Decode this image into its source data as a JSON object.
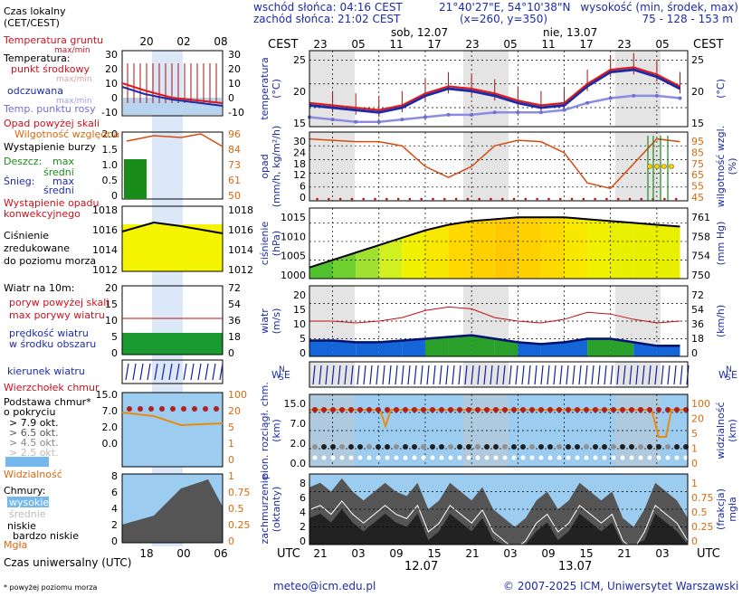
{
  "header": {
    "sunrise": "wschód słońca: 04:16 CEST",
    "sunset": "zachód słońca: 21:02 CEST",
    "coords": "21°40'27\"E, 54°10'38\"N",
    "grid": "(x=260,  y=350)",
    "height_label": "wysokość (min, środek, max)",
    "height_values": "75 - 128 - 153 m"
  },
  "top_axis": {
    "cest_left": "CEST",
    "cest_right": "CEST",
    "day1": "sob, 12.07",
    "day2": "nie, 13.07",
    "hours": [
      "23",
      "05",
      "11",
      "17",
      "23",
      "05",
      "11",
      "17",
      "23",
      "05"
    ]
  },
  "bottom_axis": {
    "utc_left": "UTC",
    "utc_right": "UTC",
    "hours": [
      "21",
      "03",
      "09",
      "15",
      "21",
      "03",
      "09",
      "15",
      "21",
      "03"
    ],
    "day1": "12.07",
    "day2": "13.07"
  },
  "legend": {
    "time": "Czas lokalny\n(CET/CEST)",
    "time_ticks": [
      "20",
      "02",
      "08"
    ],
    "soil_temp": "Temperatura gruntu",
    "maxmin": "max/min",
    "temp_title": "Temperatura:",
    "temp_mid": "punkt środkowy",
    "temp_mm": "max/min",
    "felt": "odczuwana",
    "felt_mm": "max/min",
    "dew": "Temp. punktu rosy",
    "temp_yl": [
      "30",
      "20",
      "10",
      "0",
      "-10"
    ],
    "temp_yr": [
      "30",
      "20",
      "10",
      "0",
      "-10"
    ],
    "prec_above": "Opad powyżej skali",
    "humidity": "Wilgotność względna",
    "storm": "Wystąpienie burzy",
    "rain": "Deszcz:",
    "rain_max": "max",
    "rain_mid": "średni",
    "snow": "Śnieg:",
    "snow_max": "max",
    "snow_mid": "średni",
    "conv": "Wystąpienie opadu\nkonwekcyjnego",
    "prec_yl": [
      "2.0",
      "1.5",
      "1.0",
      "0.5",
      "0"
    ],
    "prec_yr": [
      "96",
      "84",
      "73",
      "61",
      "50"
    ],
    "press_title": "Ciśnienie\nzredukowane\ndo poziomu morza",
    "press_yl": [
      "1018",
      "1016",
      "1014",
      "1012"
    ],
    "press_yr": [
      "1018",
      "1016",
      "1014",
      "1012"
    ],
    "wind_title": "Wiatr na 10m:",
    "gust_above": "poryw powyżej skali",
    "gust_max": "max porywy wiatru",
    "wind_mean": "prędkość wiatru\nw środku obszaru",
    "wind_yl": [
      "20",
      "15",
      "10",
      "5",
      "0"
    ],
    "wind_yr": [
      "72",
      "54",
      "36",
      "18",
      "0"
    ],
    "wind_dir": "kierunek wiatru",
    "cloud_top": "Wierzchołek chmur",
    "cloud_base": "Podstawa chmur*\no pokryciu",
    "okt": [
      "> 7.9 okt.",
      "> 6.5 okt.",
      "> 4.5 okt.",
      "> 2.5 okt.",
      "> 0.1 okt."
    ],
    "visibility": "Widzialność",
    "cb_yl": [
      "15.0",
      "7.0",
      "2.0",
      "0.0"
    ],
    "cb_yr": [
      "100",
      "20",
      "5",
      "1",
      "0"
    ],
    "clouds": "Chmury:",
    "c_high": "wysokie",
    "c_mid": "średnie",
    "c_low": "niskie",
    "c_vlow": "bardzo niskie",
    "fog": "Mgła",
    "cl_yl": [
      "8",
      "6",
      "4",
      "2",
      "0"
    ],
    "cl_yr": [
      "1",
      "0.75",
      "0.5",
      "0.25",
      "0"
    ],
    "utc_ticks": [
      "18",
      "00",
      "06"
    ],
    "utc": "Czas uniwersalny (UTC)",
    "footnote": "* powyżej poziomu morza"
  },
  "panels": {
    "temp": {
      "ylabel_l": "temperatura\n(°C)",
      "ylabel_r": "(°C)",
      "ticks_l": [
        "25",
        "20",
        "15"
      ],
      "ticks_r": [
        "25",
        "20",
        "15"
      ]
    },
    "prec": {
      "ylabel_l": "opad\n(mm/h, kg/m²/h)",
      "ylabel_r": "wilgotność wzgl.\n(%)",
      "ticks_l": [
        "30",
        "24",
        "18",
        "12",
        "6",
        "0"
      ],
      "ticks_r": [
        "95",
        "85",
        "75",
        "65",
        "55",
        "45"
      ]
    },
    "press": {
      "ylabel_l": "ciśnienie\n(hPa)",
      "ylabel_r": "(mm Hg)",
      "ticks_l": [
        "1015",
        "1010",
        "1005",
        "1000"
      ],
      "ticks_r": [
        "761",
        "758",
        "754",
        "750"
      ]
    },
    "wind": {
      "ylabel_l": "wiatr\n(m/s)",
      "ylabel_r": "(km/h)",
      "ticks_l": [
        "20",
        "15",
        "10",
        "5",
        "0"
      ],
      "ticks_r": [
        "72",
        "54",
        "36",
        "18",
        "0"
      ]
    },
    "dir": {
      "compass_l": "WNSE",
      "compass_r": "WNSE"
    },
    "cbase": {
      "ylabel_l": "pion. rozciągł. chm.\n(km)",
      "ylabel_r": "widzialność\n(km)",
      "ticks_l": [
        "15.0",
        "7.0",
        "2.0",
        "0.0"
      ],
      "ticks_r": [
        "100",
        "20",
        "5",
        "1",
        "0"
      ]
    },
    "cloud": {
      "ylabel_l": "zachmurzenie\n(oktanty)",
      "ylabel_r": "(frakcja)\nmgła",
      "ticks_l": [
        "8",
        "6",
        "4",
        "2",
        "0"
      ],
      "ticks_r": [
        "1",
        "0.75",
        "0.5",
        "0.25",
        "0"
      ]
    }
  },
  "footer": {
    "email": "meteo@icm.edu.pl",
    "copyright": "© 2007-2025 ICM, Uniwersytet Warszawski"
  },
  "chart_data": {
    "type": "line",
    "hours_utc": [
      18,
      21,
      24,
      27,
      30,
      33,
      36,
      39,
      42,
      45,
      48,
      51,
      54,
      57,
      60,
      63,
      66
    ],
    "temperature_c": [
      16,
      15.5,
      15,
      14.5,
      15.5,
      18,
      19.5,
      19,
      18,
      16.5,
      15.5,
      16,
      20,
      23,
      23.5,
      22,
      19.5
    ],
    "felt_c": [
      15.5,
      15,
      14.5,
      14,
      15,
      17.5,
      19,
      18.5,
      17.5,
      16,
      15,
      15.5,
      19.5,
      22.5,
      23,
      21.5,
      19
    ],
    "dew_point_c": [
      13,
      12.5,
      12,
      12,
      12.5,
      13,
      13.5,
      13.5,
      14,
      14,
      14,
      14.5,
      16,
      17,
      17.5,
      17.5,
      17
    ],
    "humidity_pct": [
      90,
      89,
      88,
      88,
      85,
      70,
      62,
      70,
      85,
      89,
      88,
      80,
      58,
      54,
      72,
      90,
      88
    ],
    "pressure_hpa": [
      1003,
      1005,
      1007,
      1009,
      1011,
      1013,
      1014.5,
      1015.5,
      1016,
      1016.5,
      1016.5,
      1016.5,
      1016,
      1015.5,
      1015,
      1014.5,
      1014
    ],
    "wind_mean_ms": [
      4.5,
      4.5,
      4,
      4,
      4.5,
      5,
      5.5,
      6,
      5,
      4,
      3.5,
      4,
      5,
      5,
      4,
      3,
      3
    ],
    "wind_gust_ms": [
      10,
      10,
      9.5,
      10,
      11,
      13,
      14,
      13.5,
      11,
      10,
      9.5,
      10.5,
      12.5,
      12,
      10.5,
      9.5,
      10
    ]
  }
}
